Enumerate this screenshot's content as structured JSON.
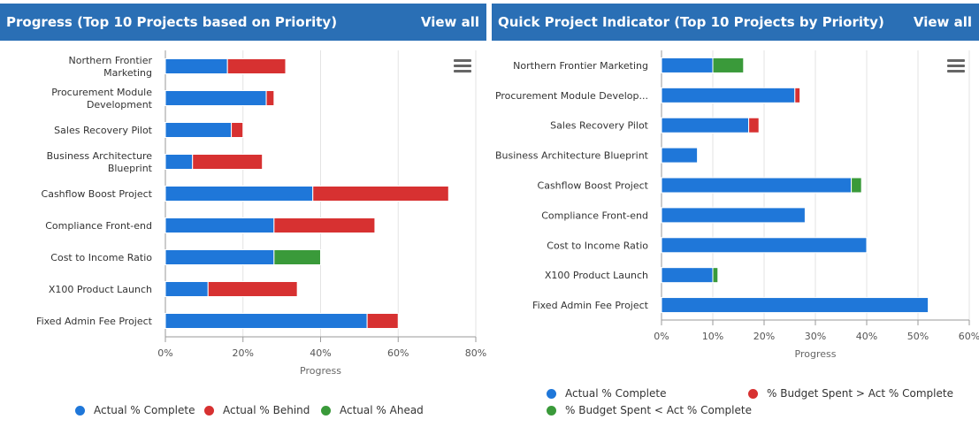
{
  "left": {
    "header": {
      "title": "Progress (Top 10 Projects based on Priority)",
      "view_all": "View all"
    },
    "chart_data": {
      "type": "bar",
      "orientation": "horizontal",
      "stacked": true,
      "categories": [
        "Northern Frontier Marketing",
        "Procurement Module Development",
        "Sales Recovery Pilot",
        "Business Architecture Blueprint",
        "Cashflow Boost Project",
        "Compliance Front-end",
        "Cost to Income Ratio",
        "X100 Product Launch",
        "Fixed Admin Fee Project"
      ],
      "series": [
        {
          "name": "Actual % Complete",
          "color": "#1f77d9",
          "values": [
            16,
            26,
            17,
            7,
            38,
            28,
            28,
            11,
            52
          ]
        },
        {
          "name": "Actual % Behind",
          "color": "#d73131",
          "values": [
            15,
            2,
            3,
            18,
            35,
            26,
            0,
            23,
            8
          ]
        },
        {
          "name": "Actual % Ahead",
          "color": "#3a9a3a",
          "values": [
            0,
            0,
            0,
            0,
            0,
            0,
            12,
            0,
            0
          ]
        }
      ],
      "xlabel": "Progress",
      "xlim": [
        0,
        80
      ],
      "xticks": [
        "0%",
        "20%",
        "40%",
        "60%",
        "80%"
      ],
      "grid": true,
      "legend_position": "bottom"
    }
  },
  "right": {
    "header": {
      "title": "Quick Project Indicator (Top 10 Projects by Priority)",
      "view_all": "View all"
    },
    "chart_data": {
      "type": "bar",
      "orientation": "horizontal",
      "stacked": true,
      "categories": [
        "Northern Frontier Marketing",
        "Procurement Module Develop...",
        "Sales Recovery Pilot",
        "Business Architecture Blueprint",
        "Cashflow Boost Project",
        "Compliance Front-end",
        "Cost to Income Ratio",
        "X100 Product Launch",
        "Fixed Admin Fee Project"
      ],
      "series": [
        {
          "name": "Actual % Complete",
          "color": "#1f77d9",
          "values": [
            10,
            26,
            17,
            7,
            37,
            28,
            40,
            10,
            52
          ]
        },
        {
          "name": "% Budget Spent > Act % Complete",
          "color": "#d73131",
          "values": [
            0,
            1,
            2,
            0,
            0,
            0,
            0,
            0,
            0
          ]
        },
        {
          "name": "% Budget Spent < Act % Complete",
          "color": "#3a9a3a",
          "values": [
            6,
            0,
            0,
            0,
            2,
            0,
            0,
            1,
            0
          ]
        }
      ],
      "xlabel": "Progress",
      "xlim": [
        0,
        60
      ],
      "xticks": [
        "0%",
        "10%",
        "20%",
        "30%",
        "40%",
        "50%",
        "60%"
      ],
      "grid": true,
      "legend_position": "bottom"
    }
  }
}
